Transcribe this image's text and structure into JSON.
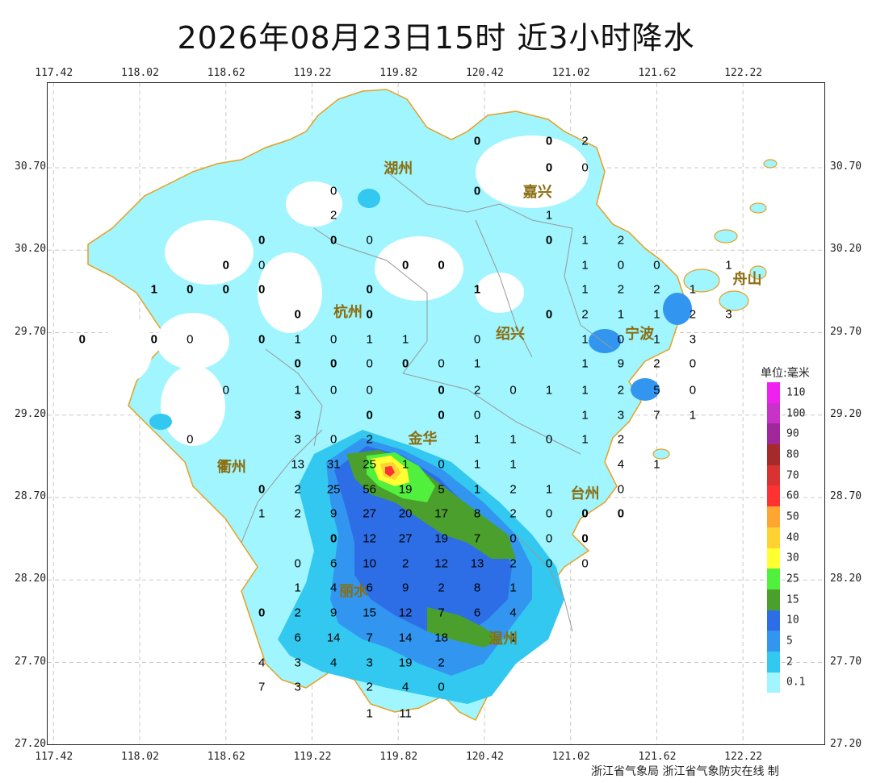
{
  "title": "2026年08月23日15时  近3小时降水",
  "axes": {
    "lon_ticks": [
      "117.42",
      "118.02",
      "118.62",
      "119.22",
      "119.82",
      "120.42",
      "121.02",
      "121.62",
      "122.22"
    ],
    "lat_ticks": [
      "30.70",
      "30.20",
      "29.70",
      "29.20",
      "28.70",
      "28.20",
      "27.70",
      "27.20"
    ]
  },
  "cities": [
    {
      "name": "湖州",
      "lon": 119.82,
      "lat": 30.7
    },
    {
      "name": "嘉兴",
      "lon": 120.79,
      "lat": 30.56
    },
    {
      "name": "杭州",
      "lon": 119.47,
      "lat": 29.83
    },
    {
      "name": "绍兴",
      "lon": 120.6,
      "lat": 29.7
    },
    {
      "name": "宁波",
      "lon": 121.5,
      "lat": 29.7
    },
    {
      "name": "舟山",
      "lon": 122.25,
      "lat": 30.03
    },
    {
      "name": "衢州",
      "lon": 118.66,
      "lat": 28.89
    },
    {
      "name": "金华",
      "lon": 119.99,
      "lat": 29.06
    },
    {
      "name": "台州",
      "lon": 121.12,
      "lat": 28.73
    },
    {
      "name": "丽水",
      "lon": 119.51,
      "lat": 28.14
    },
    {
      "name": "温州",
      "lon": 120.55,
      "lat": 27.85
    }
  ],
  "station_values": [
    {
      "v": "0",
      "lon": 120.37,
      "lat": 30.86,
      "b": true
    },
    {
      "v": "0",
      "lon": 120.87,
      "lat": 30.86,
      "b": true
    },
    {
      "v": "2",
      "lon": 121.12,
      "lat": 30.86,
      "b": false
    },
    {
      "v": "0",
      "lon": 120.87,
      "lat": 30.7,
      "b": true
    },
    {
      "v": "0",
      "lon": 121.12,
      "lat": 30.7,
      "b": false
    },
    {
      "v": "0",
      "lon": 119.37,
      "lat": 30.56,
      "b": false
    },
    {
      "v": "0",
      "lon": 120.37,
      "lat": 30.56,
      "b": true
    },
    {
      "v": "1",
      "lon": 120.87,
      "lat": 30.41,
      "b": false
    },
    {
      "v": "2",
      "lon": 119.37,
      "lat": 30.41,
      "b": false
    },
    {
      "v": "0",
      "lon": 118.87,
      "lat": 30.26,
      "b": true
    },
    {
      "v": "0",
      "lon": 119.37,
      "lat": 30.26,
      "b": true
    },
    {
      "v": "0",
      "lon": 119.62,
      "lat": 30.26,
      "b": false
    },
    {
      "v": "0",
      "lon": 120.87,
      "lat": 30.26,
      "b": true
    },
    {
      "v": "1",
      "lon": 121.12,
      "lat": 30.26,
      "b": false
    },
    {
      "v": "2",
      "lon": 121.37,
      "lat": 30.26,
      "b": false
    },
    {
      "v": "0",
      "lon": 118.62,
      "lat": 30.11,
      "b": true
    },
    {
      "v": "0",
      "lon": 118.87,
      "lat": 30.11,
      "b": false
    },
    {
      "v": "0",
      "lon": 119.87,
      "lat": 30.11,
      "b": true
    },
    {
      "v": "0",
      "lon": 120.12,
      "lat": 30.11,
      "b": true
    },
    {
      "v": "1",
      "lon": 121.12,
      "lat": 30.11,
      "b": false
    },
    {
      "v": "0",
      "lon": 121.37,
      "lat": 30.11,
      "b": false
    },
    {
      "v": "0",
      "lon": 121.62,
      "lat": 30.11,
      "b": false
    },
    {
      "v": "1",
      "lon": 122.12,
      "lat": 30.11,
      "b": false
    },
    {
      "v": "1",
      "lon": 118.12,
      "lat": 29.96,
      "b": true
    },
    {
      "v": "0",
      "lon": 118.37,
      "lat": 29.96,
      "b": true
    },
    {
      "v": "0",
      "lon": 118.62,
      "lat": 29.96,
      "b": true
    },
    {
      "v": "0",
      "lon": 118.87,
      "lat": 29.96,
      "b": true
    },
    {
      "v": "0",
      "lon": 119.62,
      "lat": 29.96,
      "b": true
    },
    {
      "v": "1",
      "lon": 120.37,
      "lat": 29.96,
      "b": true
    },
    {
      "v": "1",
      "lon": 121.12,
      "lat": 29.96,
      "b": false
    },
    {
      "v": "2",
      "lon": 121.37,
      "lat": 29.96,
      "b": false
    },
    {
      "v": "2",
      "lon": 121.62,
      "lat": 29.96,
      "b": false
    },
    {
      "v": "1",
      "lon": 121.87,
      "lat": 29.96,
      "b": false
    },
    {
      "v": "0",
      "lon": 119.12,
      "lat": 29.81,
      "b": true
    },
    {
      "v": "0",
      "lon": 119.62,
      "lat": 29.81,
      "b": true
    },
    {
      "v": "0",
      "lon": 120.87,
      "lat": 29.81,
      "b": true
    },
    {
      "v": "2",
      "lon": 121.12,
      "lat": 29.81,
      "b": false
    },
    {
      "v": "1",
      "lon": 121.37,
      "lat": 29.81,
      "b": false
    },
    {
      "v": "1",
      "lon": 121.62,
      "lat": 29.81,
      "b": false
    },
    {
      "v": "2",
      "lon": 121.87,
      "lat": 29.81,
      "b": false
    },
    {
      "v": "3",
      "lon": 122.12,
      "lat": 29.81,
      "b": false
    },
    {
      "v": "0",
      "lon": 117.62,
      "lat": 29.66,
      "b": true
    },
    {
      "v": "0",
      "lon": 118.12,
      "lat": 29.66,
      "b": true
    },
    {
      "v": "0",
      "lon": 118.37,
      "lat": 29.66,
      "b": false
    },
    {
      "v": "0",
      "lon": 118.87,
      "lat": 29.66,
      "b": true
    },
    {
      "v": "1",
      "lon": 119.12,
      "lat": 29.66,
      "b": false
    },
    {
      "v": "0",
      "lon": 119.37,
      "lat": 29.66,
      "b": false
    },
    {
      "v": "1",
      "lon": 119.62,
      "lat": 29.66,
      "b": false
    },
    {
      "v": "1",
      "lon": 119.87,
      "lat": 29.66,
      "b": false
    },
    {
      "v": "0",
      "lon": 120.37,
      "lat": 29.66,
      "b": false
    },
    {
      "v": "1",
      "lon": 121.12,
      "lat": 29.66,
      "b": false
    },
    {
      "v": "0",
      "lon": 121.37,
      "lat": 29.66,
      "b": false
    },
    {
      "v": "1",
      "lon": 121.62,
      "lat": 29.66,
      "b": false
    },
    {
      "v": "3",
      "lon": 121.87,
      "lat": 29.66,
      "b": false
    },
    {
      "v": "0",
      "lon": 119.12,
      "lat": 29.51,
      "b": true
    },
    {
      "v": "0",
      "lon": 119.37,
      "lat": 29.51,
      "b": true
    },
    {
      "v": "0",
      "lon": 119.62,
      "lat": 29.51,
      "b": false
    },
    {
      "v": "0",
      "lon": 119.87,
      "lat": 29.51,
      "b": true
    },
    {
      "v": "0",
      "lon": 120.12,
      "lat": 29.51,
      "b": false
    },
    {
      "v": "1",
      "lon": 120.37,
      "lat": 29.51,
      "b": false
    },
    {
      "v": "1",
      "lon": 121.12,
      "lat": 29.51,
      "b": false
    },
    {
      "v": "9",
      "lon": 121.37,
      "lat": 29.51,
      "b": false
    },
    {
      "v": "2",
      "lon": 121.62,
      "lat": 29.51,
      "b": false
    },
    {
      "v": "0",
      "lon": 121.87,
      "lat": 29.51,
      "b": false
    },
    {
      "v": "0",
      "lon": 118.62,
      "lat": 29.35,
      "b": false
    },
    {
      "v": "1",
      "lon": 119.12,
      "lat": 29.35,
      "b": false
    },
    {
      "v": "0",
      "lon": 119.37,
      "lat": 29.35,
      "b": false
    },
    {
      "v": "0",
      "lon": 119.62,
      "lat": 29.35,
      "b": false
    },
    {
      "v": "0",
      "lon": 120.12,
      "lat": 29.35,
      "b": true
    },
    {
      "v": "2",
      "lon": 120.37,
      "lat": 29.35,
      "b": false
    },
    {
      "v": "0",
      "lon": 120.62,
      "lat": 29.35,
      "b": false
    },
    {
      "v": "1",
      "lon": 120.87,
      "lat": 29.35,
      "b": false
    },
    {
      "v": "1",
      "lon": 121.12,
      "lat": 29.35,
      "b": false
    },
    {
      "v": "2",
      "lon": 121.37,
      "lat": 29.35,
      "b": false
    },
    {
      "v": "5",
      "lon": 121.62,
      "lat": 29.35,
      "b": false
    },
    {
      "v": "0",
      "lon": 121.87,
      "lat": 29.35,
      "b": false
    },
    {
      "v": "3",
      "lon": 119.12,
      "lat": 29.2,
      "b": true
    },
    {
      "v": "0",
      "lon": 119.62,
      "lat": 29.2,
      "b": true
    },
    {
      "v": "0",
      "lon": 120.12,
      "lat": 29.2,
      "b": true
    },
    {
      "v": "0",
      "lon": 120.37,
      "lat": 29.2,
      "b": false
    },
    {
      "v": "1",
      "lon": 121.12,
      "lat": 29.2,
      "b": false
    },
    {
      "v": "3",
      "lon": 121.37,
      "lat": 29.2,
      "b": false
    },
    {
      "v": "7",
      "lon": 121.62,
      "lat": 29.2,
      "b": false
    },
    {
      "v": "1",
      "lon": 121.87,
      "lat": 29.2,
      "b": false
    },
    {
      "v": "0",
      "lon": 118.37,
      "lat": 29.05,
      "b": false
    },
    {
      "v": "3",
      "lon": 119.12,
      "lat": 29.05,
      "b": false
    },
    {
      "v": "0",
      "lon": 119.37,
      "lat": 29.05,
      "b": false
    },
    {
      "v": "2",
      "lon": 119.62,
      "lat": 29.05,
      "b": false
    },
    {
      "v": "1",
      "lon": 120.37,
      "lat": 29.05,
      "b": false
    },
    {
      "v": "1",
      "lon": 120.62,
      "lat": 29.05,
      "b": false
    },
    {
      "v": "0",
      "lon": 120.87,
      "lat": 29.05,
      "b": false
    },
    {
      "v": "1",
      "lon": 121.12,
      "lat": 29.05,
      "b": false
    },
    {
      "v": "2",
      "lon": 121.37,
      "lat": 29.05,
      "b": false
    },
    {
      "v": "13",
      "lon": 119.12,
      "lat": 28.9,
      "b": false
    },
    {
      "v": "31",
      "lon": 119.37,
      "lat": 28.9,
      "b": false
    },
    {
      "v": "25",
      "lon": 119.62,
      "lat": 28.9,
      "b": false
    },
    {
      "v": "1",
      "lon": 119.87,
      "lat": 28.9,
      "b": false
    },
    {
      "v": "0",
      "lon": 120.12,
      "lat": 28.9,
      "b": false
    },
    {
      "v": "1",
      "lon": 120.37,
      "lat": 28.9,
      "b": false
    },
    {
      "v": "1",
      "lon": 120.62,
      "lat": 28.9,
      "b": false
    },
    {
      "v": "4",
      "lon": 121.37,
      "lat": 28.9,
      "b": false
    },
    {
      "v": "1",
      "lon": 121.62,
      "lat": 28.9,
      "b": false
    },
    {
      "v": "0",
      "lon": 118.87,
      "lat": 28.75,
      "b": true
    },
    {
      "v": "2",
      "lon": 119.12,
      "lat": 28.75,
      "b": false
    },
    {
      "v": "25",
      "lon": 119.37,
      "lat": 28.75,
      "b": false
    },
    {
      "v": "56",
      "lon": 119.62,
      "lat": 28.75,
      "b": false
    },
    {
      "v": "19",
      "lon": 119.87,
      "lat": 28.75,
      "b": false
    },
    {
      "v": "5",
      "lon": 120.12,
      "lat": 28.75,
      "b": false
    },
    {
      "v": "1",
      "lon": 120.37,
      "lat": 28.75,
      "b": false
    },
    {
      "v": "2",
      "lon": 120.62,
      "lat": 28.75,
      "b": false
    },
    {
      "v": "1",
      "lon": 120.87,
      "lat": 28.75,
      "b": false
    },
    {
      "v": "0",
      "lon": 121.37,
      "lat": 28.75,
      "b": false
    },
    {
      "v": "1",
      "lon": 118.87,
      "lat": 28.6,
      "b": false
    },
    {
      "v": "2",
      "lon": 119.12,
      "lat": 28.6,
      "b": false
    },
    {
      "v": "9",
      "lon": 119.37,
      "lat": 28.6,
      "b": false
    },
    {
      "v": "27",
      "lon": 119.62,
      "lat": 28.6,
      "b": false
    },
    {
      "v": "20",
      "lon": 119.87,
      "lat": 28.6,
      "b": false
    },
    {
      "v": "17",
      "lon": 120.12,
      "lat": 28.6,
      "b": false
    },
    {
      "v": "8",
      "lon": 120.37,
      "lat": 28.6,
      "b": false
    },
    {
      "v": "2",
      "lon": 120.62,
      "lat": 28.6,
      "b": false
    },
    {
      "v": "0",
      "lon": 120.87,
      "lat": 28.6,
      "b": false
    },
    {
      "v": "0",
      "lon": 121.12,
      "lat": 28.6,
      "b": true
    },
    {
      "v": "0",
      "lon": 121.37,
      "lat": 28.6,
      "b": true
    },
    {
      "v": "0",
      "lon": 119.37,
      "lat": 28.45,
      "b": true
    },
    {
      "v": "12",
      "lon": 119.62,
      "lat": 28.45,
      "b": false
    },
    {
      "v": "27",
      "lon": 119.87,
      "lat": 28.45,
      "b": false
    },
    {
      "v": "19",
      "lon": 120.12,
      "lat": 28.45,
      "b": false
    },
    {
      "v": "7",
      "lon": 120.37,
      "lat": 28.45,
      "b": false
    },
    {
      "v": "0",
      "lon": 120.62,
      "lat": 28.45,
      "b": false
    },
    {
      "v": "0",
      "lon": 120.87,
      "lat": 28.45,
      "b": false
    },
    {
      "v": "0",
      "lon": 121.12,
      "lat": 28.45,
      "b": true
    },
    {
      "v": "0",
      "lon": 119.12,
      "lat": 28.3,
      "b": false
    },
    {
      "v": "6",
      "lon": 119.37,
      "lat": 28.3,
      "b": false
    },
    {
      "v": "10",
      "lon": 119.62,
      "lat": 28.3,
      "b": false
    },
    {
      "v": "2",
      "lon": 119.87,
      "lat": 28.3,
      "b": false
    },
    {
      "v": "12",
      "lon": 120.12,
      "lat": 28.3,
      "b": false
    },
    {
      "v": "13",
      "lon": 120.37,
      "lat": 28.3,
      "b": false
    },
    {
      "v": "2",
      "lon": 120.62,
      "lat": 28.3,
      "b": false
    },
    {
      "v": "0",
      "lon": 120.87,
      "lat": 28.3,
      "b": false
    },
    {
      "v": "0",
      "lon": 121.12,
      "lat": 28.3,
      "b": false
    },
    {
      "v": "1",
      "lon": 119.12,
      "lat": 28.15,
      "b": false
    },
    {
      "v": "4",
      "lon": 119.37,
      "lat": 28.15,
      "b": false
    },
    {
      "v": "6",
      "lon": 119.62,
      "lat": 28.15,
      "b": false
    },
    {
      "v": "9",
      "lon": 119.87,
      "lat": 28.15,
      "b": false
    },
    {
      "v": "2",
      "lon": 120.12,
      "lat": 28.15,
      "b": false
    },
    {
      "v": "8",
      "lon": 120.37,
      "lat": 28.15,
      "b": false
    },
    {
      "v": "1",
      "lon": 120.62,
      "lat": 28.15,
      "b": false
    },
    {
      "v": "0",
      "lon": 118.87,
      "lat": 28.0,
      "b": true
    },
    {
      "v": "2",
      "lon": 119.12,
      "lat": 28.0,
      "b": false
    },
    {
      "v": "9",
      "lon": 119.37,
      "lat": 28.0,
      "b": false
    },
    {
      "v": "15",
      "lon": 119.62,
      "lat": 28.0,
      "b": false
    },
    {
      "v": "12",
      "lon": 119.87,
      "lat": 28.0,
      "b": false
    },
    {
      "v": "7",
      "lon": 120.12,
      "lat": 28.0,
      "b": false
    },
    {
      "v": "6",
      "lon": 120.37,
      "lat": 28.0,
      "b": false
    },
    {
      "v": "4",
      "lon": 120.62,
      "lat": 28.0,
      "b": false
    },
    {
      "v": "6",
      "lon": 119.12,
      "lat": 27.85,
      "b": false
    },
    {
      "v": "14",
      "lon": 119.37,
      "lat": 27.85,
      "b": false
    },
    {
      "v": "7",
      "lon": 119.62,
      "lat": 27.85,
      "b": false
    },
    {
      "v": "14",
      "lon": 119.87,
      "lat": 27.85,
      "b": false
    },
    {
      "v": "18",
      "lon": 120.12,
      "lat": 27.85,
      "b": false
    },
    {
      "v": "1",
      "lon": 120.62,
      "lat": 27.85,
      "b": false
    },
    {
      "v": "4",
      "lon": 118.87,
      "lat": 27.7,
      "b": false
    },
    {
      "v": "3",
      "lon": 119.12,
      "lat": 27.7,
      "b": false
    },
    {
      "v": "4",
      "lon": 119.37,
      "lat": 27.7,
      "b": false
    },
    {
      "v": "3",
      "lon": 119.62,
      "lat": 27.7,
      "b": false
    },
    {
      "v": "19",
      "lon": 119.87,
      "lat": 27.7,
      "b": false
    },
    {
      "v": "2",
      "lon": 120.12,
      "lat": 27.7,
      "b": false
    },
    {
      "v": "7",
      "lon": 118.87,
      "lat": 27.55,
      "b": false
    },
    {
      "v": "3",
      "lon": 119.12,
      "lat": 27.55,
      "b": false
    },
    {
      "v": "2",
      "lon": 119.62,
      "lat": 27.55,
      "b": false
    },
    {
      "v": "4",
      "lon": 119.87,
      "lat": 27.55,
      "b": false
    },
    {
      "v": "0",
      "lon": 120.12,
      "lat": 27.55,
      "b": false
    },
    {
      "v": "1",
      "lon": 119.62,
      "lat": 27.39,
      "b": false
    },
    {
      "v": "11",
      "lon": 119.87,
      "lat": 27.39,
      "b": false
    }
  ],
  "legend": {
    "title": "单位:毫米",
    "items": [
      {
        "label": "110",
        "color": "#f020f0"
      },
      {
        "label": "100",
        "color": "#c832c8"
      },
      {
        "label": "90",
        "color": "#a0289c"
      },
      {
        "label": "80",
        "color": "#a52a2a"
      },
      {
        "label": "70",
        "color": "#d93232"
      },
      {
        "label": "60",
        "color": "#ff3232"
      },
      {
        "label": "50",
        "color": "#ffa532"
      },
      {
        "label": "40",
        "color": "#ffd232"
      },
      {
        "label": "30",
        "color": "#ffff32"
      },
      {
        "label": "25",
        "color": "#50f03c"
      },
      {
        "label": "15",
        "color": "#4ba02d"
      },
      {
        "label": "10",
        "color": "#2d6ee6"
      },
      {
        "label": "5",
        "color": "#3296f0"
      },
      {
        "label": "2",
        "color": "#32c8f0"
      },
      {
        "label": "0.1",
        "color": "#a0f5ff"
      }
    ]
  },
  "credit": "浙江省气象局 浙江省气象防灾在线 制"
}
